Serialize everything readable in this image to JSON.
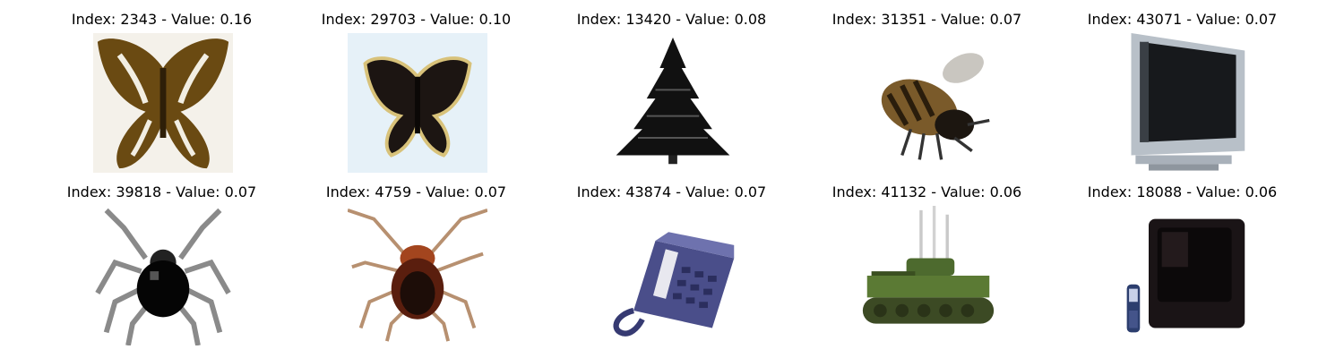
{
  "figure": {
    "rows": 2,
    "cols": 5,
    "items": [
      {
        "title": "Index: 2343 - Value: 0.16",
        "subject": "butterfly-brown"
      },
      {
        "title": "Index: 29703 - Value: 0.10",
        "subject": "butterfly-dark"
      },
      {
        "title": "Index: 13420 - Value: 0.08",
        "subject": "pine-tree"
      },
      {
        "title": "Index: 31351 - Value: 0.07",
        "subject": "bee"
      },
      {
        "title": "Index: 43071 - Value: 0.07",
        "subject": "television"
      },
      {
        "title": "Index: 39818 - Value: 0.07",
        "subject": "spider"
      },
      {
        "title": "Index: 4759 - Value: 0.07",
        "subject": "cockroach"
      },
      {
        "title": "Index: 43874 - Value: 0.07",
        "subject": "telephone"
      },
      {
        "title": "Index: 41132 - Value: 0.06",
        "subject": "tank"
      },
      {
        "title": "Index: 18088 - Value: 0.06",
        "subject": "crt-television"
      }
    ]
  }
}
